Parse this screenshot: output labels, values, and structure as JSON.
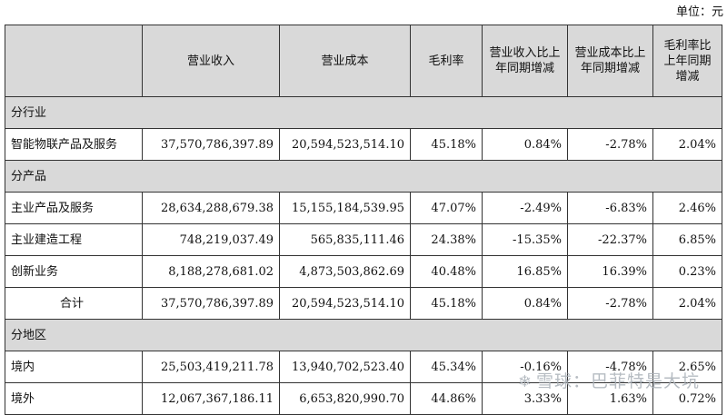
{
  "unit_label": "单位：元",
  "headers": [
    "",
    "营业收入",
    "营业成本",
    "毛利率",
    "营业收入比上年同期增减",
    "营业成本比上年同期增减",
    "毛利率比上年同期增减"
  ],
  "sections": {
    "industry": {
      "title": "分行业",
      "rows": [
        [
          "智能物联产品及服务",
          "37,570,786,397.89",
          "20,594,523,514.10",
          "45.18%",
          "0.84%",
          "-2.78%",
          "2.04%"
        ]
      ]
    },
    "product": {
      "title": "分产品",
      "rows": [
        [
          "主业产品及服务",
          "28,634,288,679.38",
          "15,155,184,539.95",
          "47.07%",
          "-2.49%",
          "-6.83%",
          "2.46%"
        ],
        [
          "主业建造工程",
          "748,219,037.49",
          "565,835,111.46",
          "24.38%",
          "-15.35%",
          "-22.37%",
          "6.85%"
        ],
        [
          "创新业务",
          "8,188,278,681.02",
          "4,873,503,862.69",
          "40.48%",
          "16.85%",
          "16.39%",
          "0.23%"
        ]
      ],
      "total": [
        "合计",
        "37,570,786,397.89",
        "20,594,523,514.10",
        "45.18%",
        "0.84%",
        "-2.78%",
        "2.04%"
      ]
    },
    "region": {
      "title": "分地区",
      "rows": [
        [
          "境内",
          "25,503,419,211.78",
          "13,940,702,523.40",
          "45.34%",
          "-0.16%",
          "-4.78%",
          "2.65%"
        ],
        [
          "境外",
          "12,067,367,186.11",
          "6,653,820,990.70",
          "44.86%",
          "3.33%",
          "1.63%",
          "0.72%"
        ]
      ]
    }
  },
  "watermark": "雪球：巴菲特是大坑"
}
